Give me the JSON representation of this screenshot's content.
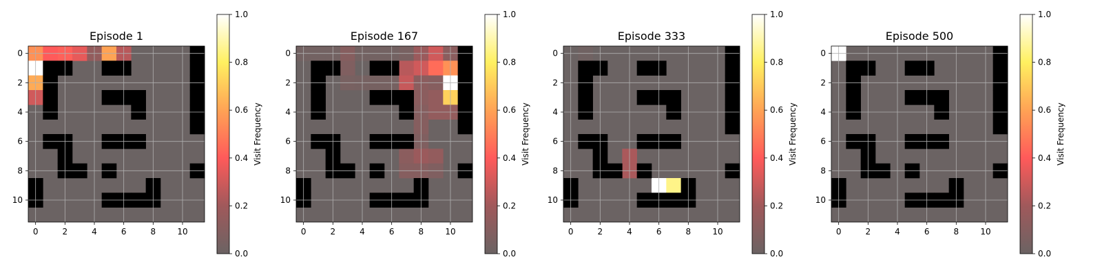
{
  "chart_data": [
    {
      "type": "heatmap",
      "title": "Episode 1",
      "colorbar_label": "Visit Frequency",
      "clim": [
        0,
        1
      ],
      "colorbar_ticks": [
        "0.0",
        "0.2",
        "0.4",
        "0.6",
        "0.8",
        "1.0"
      ],
      "x_ticks": [
        "0",
        "2",
        "4",
        "6",
        "8",
        "10"
      ],
      "y_ticks": [
        "0",
        "2",
        "4",
        "6",
        "8",
        "10"
      ],
      "grid": true,
      "walls": [
        [
          0,
          11
        ],
        [
          1,
          1
        ],
        [
          1,
          2
        ],
        [
          1,
          5
        ],
        [
          1,
          6
        ],
        [
          1,
          11
        ],
        [
          2,
          1
        ],
        [
          2,
          11
        ],
        [
          3,
          1
        ],
        [
          3,
          5
        ],
        [
          3,
          6
        ],
        [
          3,
          7
        ],
        [
          3,
          11
        ],
        [
          4,
          1
        ],
        [
          4,
          7
        ],
        [
          4,
          11
        ],
        [
          5,
          11
        ],
        [
          6,
          1
        ],
        [
          6,
          2
        ],
        [
          6,
          5
        ],
        [
          6,
          6
        ],
        [
          6,
          7
        ],
        [
          7,
          2
        ],
        [
          8,
          2
        ],
        [
          8,
          3
        ],
        [
          8,
          5
        ],
        [
          8,
          11
        ],
        [
          9,
          0
        ],
        [
          9,
          8
        ],
        [
          10,
          0
        ],
        [
          10,
          5
        ],
        [
          10,
          6
        ],
        [
          10,
          7
        ],
        [
          10,
          8
        ]
      ],
      "visits": [
        [
          0,
          0,
          0.55
        ],
        [
          0,
          1,
          0.4
        ],
        [
          0,
          2,
          0.42
        ],
        [
          0,
          3,
          0.35
        ],
        [
          0,
          4,
          0.15
        ],
        [
          0,
          5,
          0.6
        ],
        [
          0,
          6,
          0.25
        ],
        [
          1,
          0,
          1.0
        ],
        [
          2,
          0,
          0.62
        ],
        [
          3,
          0,
          0.3
        ]
      ]
    },
    {
      "type": "heatmap",
      "title": "Episode 167",
      "colorbar_label": "Visit Frequency",
      "clim": [
        0,
        1
      ],
      "colorbar_ticks": [
        "0.0",
        "0.2",
        "0.4",
        "0.6",
        "0.8",
        "1.0"
      ],
      "x_ticks": [
        "0",
        "2",
        "4",
        "6",
        "8",
        "10"
      ],
      "y_ticks": [
        "0",
        "2",
        "4",
        "6",
        "8",
        "10"
      ],
      "grid": true,
      "walls": [
        [
          0,
          11
        ],
        [
          1,
          1
        ],
        [
          1,
          2
        ],
        [
          1,
          5
        ],
        [
          1,
          6
        ],
        [
          1,
          11
        ],
        [
          2,
          1
        ],
        [
          2,
          11
        ],
        [
          3,
          1
        ],
        [
          3,
          5
        ],
        [
          3,
          6
        ],
        [
          3,
          7
        ],
        [
          3,
          11
        ],
        [
          4,
          1
        ],
        [
          4,
          7
        ],
        [
          4,
          11
        ],
        [
          5,
          11
        ],
        [
          6,
          1
        ],
        [
          6,
          2
        ],
        [
          6,
          5
        ],
        [
          6,
          6
        ],
        [
          6,
          7
        ],
        [
          7,
          2
        ],
        [
          8,
          2
        ],
        [
          8,
          3
        ],
        [
          8,
          5
        ],
        [
          8,
          11
        ],
        [
          9,
          0
        ],
        [
          9,
          8
        ],
        [
          10,
          0
        ],
        [
          10,
          5
        ],
        [
          10,
          6
        ],
        [
          10,
          7
        ],
        [
          10,
          8
        ]
      ],
      "visits": [
        [
          0,
          0,
          0.03
        ],
        [
          0,
          1,
          0.03
        ],
        [
          0,
          2,
          0.03
        ],
        [
          0,
          3,
          0.1
        ],
        [
          0,
          4,
          0.03
        ],
        [
          0,
          5,
          0.03
        ],
        [
          0,
          6,
          0.03
        ],
        [
          0,
          7,
          0.05
        ],
        [
          0,
          8,
          0.18
        ],
        [
          0,
          9,
          0.3
        ],
        [
          0,
          10,
          0.12
        ],
        [
          1,
          3,
          0.08
        ],
        [
          1,
          7,
          0.25
        ],
        [
          1,
          8,
          0.3
        ],
        [
          1,
          9,
          0.45
        ],
        [
          1,
          10,
          0.55
        ],
        [
          2,
          3,
          0.05
        ],
        [
          2,
          4,
          0.04
        ],
        [
          2,
          5,
          0.04
        ],
        [
          2,
          6,
          0.04
        ],
        [
          2,
          7,
          0.28
        ],
        [
          2,
          8,
          0.12
        ],
        [
          2,
          9,
          0.1
        ],
        [
          2,
          10,
          1.0
        ],
        [
          3,
          8,
          0.12
        ],
        [
          3,
          9,
          0.15
        ],
        [
          3,
          10,
          0.72
        ],
        [
          4,
          8,
          0.1
        ],
        [
          4,
          9,
          0.15
        ],
        [
          4,
          10,
          0.15
        ],
        [
          5,
          8,
          0.1
        ],
        [
          6,
          8,
          0.08
        ],
        [
          7,
          7,
          0.12
        ],
        [
          7,
          8,
          0.18
        ],
        [
          7,
          9,
          0.15
        ],
        [
          8,
          7,
          0.1
        ],
        [
          8,
          8,
          0.1
        ],
        [
          8,
          9,
          0.08
        ]
      ]
    },
    {
      "type": "heatmap",
      "title": "Episode 333",
      "colorbar_label": "Visit Frequency",
      "clim": [
        0,
        1
      ],
      "colorbar_ticks": [
        "0.0",
        "0.2",
        "0.4",
        "0.6",
        "0.8",
        "1.0"
      ],
      "x_ticks": [
        "0",
        "2",
        "4",
        "6",
        "8",
        "10"
      ],
      "y_ticks": [
        "0",
        "2",
        "4",
        "6",
        "8",
        "10"
      ],
      "grid": true,
      "walls": [
        [
          0,
          11
        ],
        [
          1,
          1
        ],
        [
          1,
          2
        ],
        [
          1,
          5
        ],
        [
          1,
          6
        ],
        [
          1,
          11
        ],
        [
          2,
          1
        ],
        [
          2,
          11
        ],
        [
          3,
          1
        ],
        [
          3,
          5
        ],
        [
          3,
          6
        ],
        [
          3,
          7
        ],
        [
          3,
          11
        ],
        [
          4,
          1
        ],
        [
          4,
          7
        ],
        [
          4,
          11
        ],
        [
          5,
          11
        ],
        [
          6,
          1
        ],
        [
          6,
          2
        ],
        [
          6,
          5
        ],
        [
          6,
          6
        ],
        [
          6,
          7
        ],
        [
          7,
          2
        ],
        [
          8,
          2
        ],
        [
          8,
          3
        ],
        [
          8,
          5
        ],
        [
          8,
          11
        ],
        [
          9,
          0
        ],
        [
          9,
          8
        ],
        [
          10,
          0
        ],
        [
          10,
          5
        ],
        [
          10,
          6
        ],
        [
          10,
          7
        ],
        [
          10,
          8
        ]
      ],
      "visits": [
        [
          0,
          1,
          0.02
        ],
        [
          7,
          4,
          0.22
        ],
        [
          8,
          4,
          0.22
        ],
        [
          9,
          6,
          1.0
        ],
        [
          9,
          7,
          0.85
        ]
      ]
    },
    {
      "type": "heatmap",
      "title": "Episode 500",
      "colorbar_label": "Visit Frequency",
      "clim": [
        0,
        1
      ],
      "colorbar_ticks": [
        "0.0",
        "0.2",
        "0.4",
        "0.6",
        "0.8",
        "1.0"
      ],
      "x_ticks": [
        "0",
        "2",
        "4",
        "6",
        "8",
        "10"
      ],
      "y_ticks": [
        "0",
        "2",
        "4",
        "6",
        "8",
        "10"
      ],
      "grid": true,
      "walls": [
        [
          0,
          11
        ],
        [
          1,
          1
        ],
        [
          1,
          2
        ],
        [
          1,
          5
        ],
        [
          1,
          6
        ],
        [
          1,
          11
        ],
        [
          2,
          1
        ],
        [
          2,
          11
        ],
        [
          3,
          1
        ],
        [
          3,
          5
        ],
        [
          3,
          6
        ],
        [
          3,
          7
        ],
        [
          3,
          11
        ],
        [
          4,
          1
        ],
        [
          4,
          7
        ],
        [
          4,
          11
        ],
        [
          5,
          11
        ],
        [
          6,
          1
        ],
        [
          6,
          2
        ],
        [
          6,
          5
        ],
        [
          6,
          6
        ],
        [
          6,
          7
        ],
        [
          7,
          2
        ],
        [
          8,
          2
        ],
        [
          8,
          3
        ],
        [
          8,
          5
        ],
        [
          8,
          11
        ],
        [
          9,
          0
        ],
        [
          9,
          8
        ],
        [
          10,
          0
        ],
        [
          10,
          5
        ],
        [
          10,
          6
        ],
        [
          10,
          7
        ],
        [
          10,
          8
        ]
      ],
      "visits": [
        [
          0,
          0,
          1.0
        ]
      ]
    }
  ]
}
